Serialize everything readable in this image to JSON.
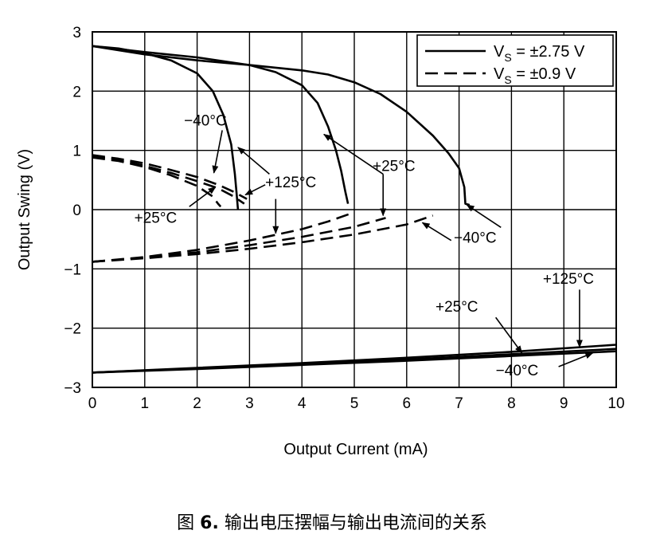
{
  "caption": {
    "prefix": "图",
    "number": "6.",
    "text": "输出电压摆幅与输出电流间的关系"
  },
  "chart_data": {
    "type": "line",
    "xlabel": "Output Current (mA)",
    "ylabel": "Output Swing (V)",
    "xlim": [
      0,
      10
    ],
    "ylim": [
      -3,
      3
    ],
    "x_ticks": [
      "0",
      "1",
      "2",
      "3",
      "4",
      "5",
      "6",
      "7",
      "8",
      "9",
      "10"
    ],
    "y_ticks": [
      "3",
      "2",
      "1",
      "0",
      "−1",
      "−2",
      "−3"
    ],
    "grid": true,
    "legend": {
      "placement": "top-right",
      "entries": [
        {
          "label_main": "V",
          "label_sub": "S",
          "label_rest": " = ±2.75 V",
          "style": "solid"
        },
        {
          "label_main": "V",
          "label_sub": "S",
          "label_rest": " = ±0.9 V",
          "style": "dashed"
        }
      ]
    },
    "series": [
      {
        "supply": "±2.75 V",
        "temp": "+125°C",
        "branch": "sourcing",
        "style": "solid",
        "x": [
          0,
          0.5,
          1.0,
          1.5,
          2.0,
          2.3,
          2.5,
          2.65,
          2.72,
          2.75,
          2.78
        ],
        "y": [
          2.76,
          2.72,
          2.64,
          2.52,
          2.3,
          2.0,
          1.6,
          1.1,
          0.6,
          0.3,
          0.0
        ]
      },
      {
        "supply": "±2.75 V",
        "temp": "+25°C",
        "branch": "sourcing",
        "style": "solid",
        "x": [
          0,
          1,
          2,
          3,
          3.5,
          4.0,
          4.3,
          4.5,
          4.65,
          4.75,
          4.83,
          4.88
        ],
        "y": [
          2.76,
          2.66,
          2.57,
          2.44,
          2.32,
          2.1,
          1.8,
          1.4,
          1.0,
          0.65,
          0.3,
          0.1
        ]
      },
      {
        "supply": "±2.75 V",
        "temp": "−40°C",
        "branch": "sourcing",
        "style": "solid",
        "x": [
          0,
          1,
          2,
          3,
          4,
          4.5,
          5.0,
          5.5,
          6.0,
          6.5,
          6.8,
          7.0,
          7.1,
          7.12,
          7.2
        ],
        "y": [
          2.76,
          2.62,
          2.52,
          2.44,
          2.35,
          2.28,
          2.15,
          1.95,
          1.65,
          1.25,
          0.95,
          0.7,
          0.38,
          0.1,
          0.08
        ]
      },
      {
        "supply": "±2.75 V",
        "temp": "+125°C",
        "branch": "sinking",
        "style": "solid",
        "x": [
          0,
          2,
          4,
          6,
          8,
          10
        ],
        "y": [
          -2.75,
          -2.67,
          -2.59,
          -2.5,
          -2.4,
          -2.28
        ]
      },
      {
        "supply": "±2.75 V",
        "temp": "+25°C",
        "branch": "sinking",
        "style": "solid",
        "x": [
          0,
          2,
          4,
          6,
          8,
          10
        ],
        "y": [
          -2.75,
          -2.68,
          -2.61,
          -2.53,
          -2.44,
          -2.35
        ]
      },
      {
        "supply": "±2.75 V",
        "temp": "−40°C",
        "branch": "sinking",
        "style": "solid",
        "x": [
          0,
          2,
          4,
          6,
          8,
          10
        ],
        "y": [
          -2.75,
          -2.69,
          -2.62,
          -2.55,
          -2.47,
          -2.39
        ]
      },
      {
        "supply": "±0.9 V",
        "temp": "−40°C",
        "branch": "sourcing",
        "style": "dashed",
        "x": [
          0,
          0.5,
          1.0,
          1.5,
          2.0,
          2.4,
          2.7,
          2.9
        ],
        "y": [
          0.9,
          0.84,
          0.74,
          0.62,
          0.48,
          0.36,
          0.22,
          0.1
        ]
      },
      {
        "supply": "±0.9 V",
        "temp": "+125°C",
        "branch": "sourcing",
        "style": "dashed",
        "x": [
          0,
          0.5,
          1.0,
          1.5,
          2.0,
          2.4,
          2.7,
          2.95
        ],
        "y": [
          0.92,
          0.86,
          0.78,
          0.67,
          0.55,
          0.42,
          0.3,
          0.18
        ]
      },
      {
        "supply": "±0.9 V",
        "temp": "+25°C",
        "branch": "sourcing",
        "style": "dashed",
        "x": [
          0,
          0.5,
          1.0,
          1.5,
          2.0,
          2.3,
          2.4,
          2.45
        ],
        "y": [
          0.88,
          0.82,
          0.72,
          0.58,
          0.4,
          0.22,
          0.1,
          0.05
        ]
      },
      {
        "supply": "±0.9 V",
        "temp": "+125°C",
        "branch": "sinking",
        "style": "dashed",
        "x": [
          0,
          1,
          2,
          3,
          4,
          4.5,
          4.95
        ],
        "y": [
          -0.88,
          -0.8,
          -0.68,
          -0.52,
          -0.33,
          -0.2,
          -0.06
        ]
      },
      {
        "supply": "±0.9 V",
        "temp": "+25°C",
        "branch": "sinking",
        "style": "dashed",
        "x": [
          0,
          1,
          2,
          3,
          4,
          5,
          5.6
        ],
        "y": [
          -0.88,
          -0.81,
          -0.72,
          -0.6,
          -0.46,
          -0.29,
          -0.14
        ]
      },
      {
        "supply": "±0.9 V",
        "temp": "−40°C",
        "branch": "sinking",
        "style": "dashed",
        "x": [
          0,
          1,
          2,
          3,
          4,
          5,
          6,
          6.5
        ],
        "y": [
          -0.88,
          -0.82,
          -0.75,
          -0.66,
          -0.55,
          -0.42,
          -0.25,
          -0.1
        ]
      }
    ],
    "annotations": [
      {
        "text": "−40°C",
        "x": 1.75,
        "y": 1.42,
        "arrow_to": [
          2.32,
          0.62
        ]
      },
      {
        "text": "",
        "x": 2.75,
        "y": 1.12,
        "arrow_to": [
          2.75,
          1.12
        ],
        "from": [
          3.38,
          0.6
        ],
        "to": [
          2.78,
          1.05
        ]
      },
      {
        "text": "+125°C",
        "x": 3.3,
        "y": 0.38,
        "arrow_to": [
          2.42,
          0.15
        ],
        "from": [
          3.3,
          0.42
        ],
        "to": [
          2.92,
          0.25
        ]
      },
      {
        "text": "",
        "from": [
          3.5,
          0.18
        ],
        "to": [
          3.5,
          -0.4
        ]
      },
      {
        "text": "+25°C",
        "x": 0.8,
        "y": -0.22,
        "from": [
          1.85,
          0.05
        ],
        "to": [
          2.35,
          0.38
        ]
      },
      {
        "text": "+25°C",
        "x": 5.35,
        "y": 0.65,
        "from": [
          5.55,
          0.6
        ],
        "to": [
          4.42,
          1.27
        ]
      },
      {
        "text": "",
        "from": [
          5.55,
          0.6
        ],
        "to": [
          5.55,
          -0.1
        ]
      },
      {
        "text": "−40°C",
        "x": 6.9,
        "y": -0.56,
        "from": [
          6.85,
          -0.52
        ],
        "to": [
          6.3,
          -0.22
        ]
      },
      {
        "text": "",
        "from": [
          7.8,
          -0.3
        ],
        "to": [
          7.15,
          0.08
        ]
      },
      {
        "text": "+125°C",
        "x": 8.6,
        "y": -1.25,
        "from": [
          9.3,
          -1.35
        ],
        "to": [
          9.3,
          -2.32
        ]
      },
      {
        "text": "+25°C",
        "x": 6.55,
        "y": -1.72,
        "from": [
          7.7,
          -1.82
        ],
        "to": [
          8.2,
          -2.42
        ]
      },
      {
        "text": "−40°C",
        "x": 7.7,
        "y": -2.8,
        "from": [
          8.9,
          -2.65
        ],
        "to": [
          9.55,
          -2.42
        ]
      }
    ]
  }
}
